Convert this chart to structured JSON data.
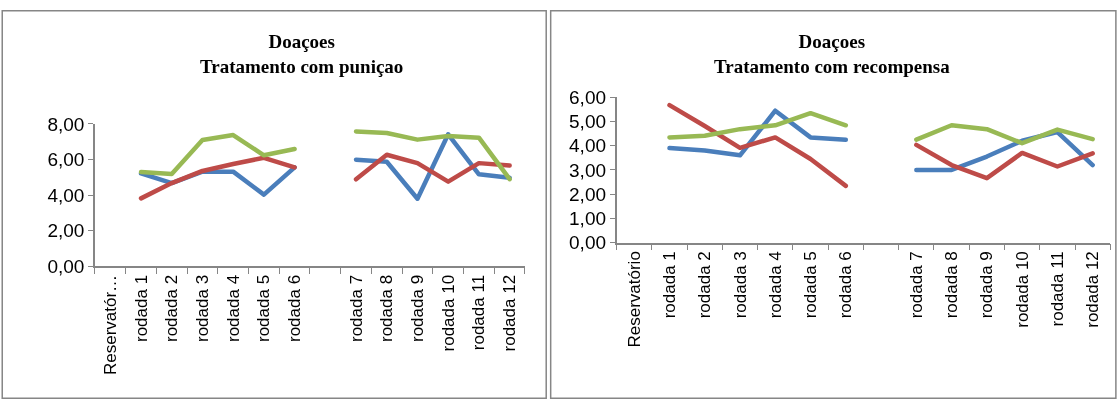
{
  "chart_data": [
    {
      "type": "line",
      "title": "Doaçoes\nTratamento com puniçao",
      "categories": [
        "Reservatór…",
        "rodada 1",
        "rodada 2",
        "rodada 3",
        "rodada 4",
        "rodada 5",
        "rodada 6",
        null,
        "rodada 7",
        "rodada 8",
        "rodada 9",
        "rodada 10",
        "rodada 11",
        "rodada 12"
      ],
      "series": [
        {
          "color": "#4a7ebb",
          "values": [
            null,
            5.22,
            4.68,
            5.32,
            5.32,
            4.03,
            5.56,
            null,
            5.99,
            5.88,
            3.8,
            7.42,
            5.17,
            4.98
          ]
        },
        {
          "color": "#be4b48",
          "values": [
            null,
            3.82,
            4.68,
            5.36,
            5.75,
            6.1,
            5.56,
            null,
            4.89,
            6.27,
            5.8,
            4.76,
            5.8,
            5.66
          ]
        },
        {
          "color": "#98b954",
          "values": [
            null,
            5.3,
            5.19,
            7.1,
            7.38,
            6.24,
            6.59,
            null,
            7.58,
            7.49,
            7.12,
            7.32,
            7.23,
            4.9
          ]
        }
      ],
      "ylim": [
        0,
        8
      ],
      "yticks": [
        {
          "value": 0,
          "label": "0,00"
        },
        {
          "value": 2,
          "label": "2,00"
        },
        {
          "value": 4,
          "label": "4,00"
        },
        {
          "value": 6,
          "label": "6,00"
        },
        {
          "value": 8,
          "label": "8,00"
        }
      ]
    },
    {
      "type": "line",
      "title": "Doaçoes\nTratamento com recompensa",
      "categories": [
        "Reservatório",
        "rodada 1",
        "rodada 2",
        "rodada 3",
        "rodada 4",
        "rodada 5",
        "rodada 6",
        null,
        "rodada 7",
        "rodada 8",
        "rodada 9",
        "rodada 10",
        "rodada 11",
        "rodada 12"
      ],
      "series": [
        {
          "color": "#4a7ebb",
          "values": [
            null,
            3.9,
            3.8,
            3.6,
            5.44,
            4.34,
            4.24,
            null,
            3.0,
            3.0,
            3.55,
            4.2,
            4.56,
            3.2
          ]
        },
        {
          "color": "#be4b48",
          "values": [
            null,
            5.67,
            4.81,
            3.91,
            4.34,
            3.45,
            2.34,
            null,
            4.03,
            3.2,
            2.66,
            3.7,
            3.14,
            3.68
          ]
        },
        {
          "color": "#98b954",
          "values": [
            null,
            4.34,
            4.41,
            4.68,
            4.84,
            5.34,
            4.84,
            null,
            4.25,
            4.84,
            4.68,
            4.1,
            4.66,
            4.27
          ]
        }
      ],
      "ylim": [
        0,
        6
      ],
      "yticks": [
        {
          "value": 0,
          "label": "0,00"
        },
        {
          "value": 1,
          "label": "1,00"
        },
        {
          "value": 2,
          "label": "2,00"
        },
        {
          "value": 3,
          "label": "3,00"
        },
        {
          "value": 4,
          "label": "4,00"
        },
        {
          "value": 5,
          "label": "5,00"
        },
        {
          "value": 6,
          "label": "6,00"
        }
      ]
    }
  ]
}
